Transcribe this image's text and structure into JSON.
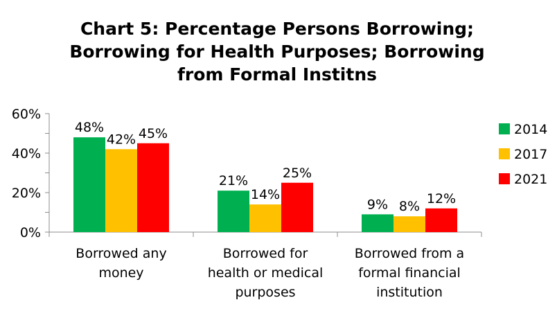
{
  "chart_data": {
    "type": "bar",
    "title": [
      "Chart 5: Percentage Persons Borrowing;",
      "Borrowing for Health Purposes; Borrowing",
      "from Formal Institns"
    ],
    "categories": [
      [
        "Borrowed any",
        "money"
      ],
      [
        "Borrowed for",
        "health or medical",
        "purposes"
      ],
      [
        "Borrowed from a",
        "formal financial",
        "institution"
      ]
    ],
    "series": [
      {
        "name": "2014",
        "values": [
          48,
          21,
          9
        ],
        "labels": [
          "48%",
          "21%",
          "9%"
        ],
        "color": "#00b050"
      },
      {
        "name": "2017",
        "values": [
          42,
          14,
          8
        ],
        "labels": [
          "42%",
          "14%",
          "8%"
        ],
        "color": "#ffc000"
      },
      {
        "name": "2021",
        "values": [
          45,
          25,
          12
        ],
        "labels": [
          "45%",
          "25%",
          "12%"
        ],
        "color": "#ff0000"
      }
    ],
    "y_ticks": [
      0,
      20,
      40,
      60
    ],
    "y_tick_labels": [
      "0%",
      "20%",
      "40%",
      "60%"
    ],
    "ylim": [
      0,
      60
    ],
    "legend_position": "right",
    "grid": false
  }
}
